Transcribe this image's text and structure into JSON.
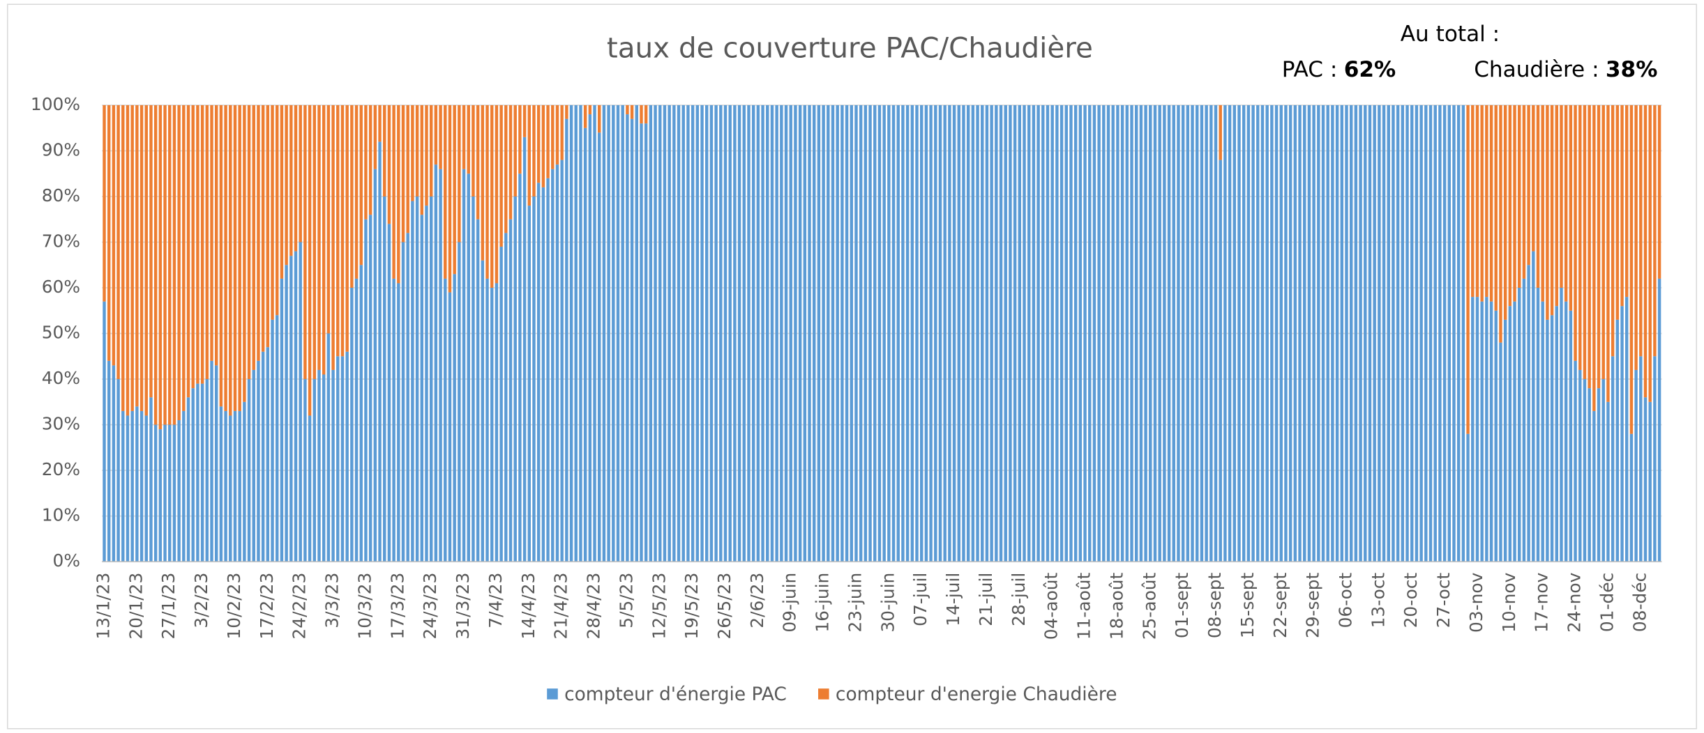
{
  "chart_data": {
    "type": "stacked_bar_percent",
    "title": "taux de couverture PAC/Chaudière",
    "annotation": {
      "title": "Au total :",
      "items": [
        {
          "label": "PAC :",
          "value_label": "62%"
        },
        {
          "label": "Chaudière :",
          "value_label": "38%"
        }
      ]
    },
    "categories": [
      "13/1/23",
      null,
      null,
      null,
      null,
      null,
      null,
      "20/1/23",
      null,
      null,
      null,
      null,
      null,
      null,
      "27/1/23",
      null,
      null,
      null,
      null,
      null,
      null,
      "3/2/23",
      null,
      null,
      null,
      null,
      null,
      null,
      "10/2/23",
      null,
      null,
      null,
      null,
      null,
      null,
      "17/2/23",
      null,
      null,
      null,
      null,
      null,
      null,
      "24/2/23",
      null,
      null,
      null,
      null,
      null,
      null,
      "3/3/23",
      null,
      null,
      null,
      null,
      null,
      null,
      "10/3/23",
      null,
      null,
      null,
      null,
      null,
      null,
      "17/3/23",
      null,
      null,
      null,
      null,
      null,
      null,
      "24/3/23",
      null,
      null,
      null,
      null,
      null,
      null,
      "31/3/23",
      null,
      null,
      null,
      null,
      null,
      null,
      "7/4/23",
      null,
      null,
      null,
      null,
      null,
      null,
      "14/4/23",
      null,
      null,
      null,
      null,
      null,
      null,
      "21/4/23",
      null,
      null,
      null,
      null,
      null,
      null,
      "28/4/23",
      null,
      null,
      null,
      null,
      null,
      null,
      "5/5/23",
      null,
      null,
      null,
      null,
      null,
      null,
      "12/5/23",
      null,
      null,
      null,
      null,
      null,
      null,
      "19/5/23",
      null,
      null,
      null,
      null,
      null,
      null,
      "26/5/23",
      null,
      null,
      null,
      null,
      null,
      null,
      "2/6/23",
      null,
      null,
      null,
      null,
      null,
      null,
      "09-juin",
      null,
      null,
      null,
      null,
      null,
      null,
      "16-juin",
      null,
      null,
      null,
      null,
      null,
      null,
      "23-juin",
      null,
      null,
      null,
      null,
      null,
      null,
      "30-juin",
      null,
      null,
      null,
      null,
      null,
      null,
      "07-juil",
      null,
      null,
      null,
      null,
      null,
      null,
      "14-juil",
      null,
      null,
      null,
      null,
      null,
      null,
      "21-juil",
      null,
      null,
      null,
      null,
      null,
      null,
      "28-juil",
      null,
      null,
      null,
      null,
      null,
      null,
      "04-août",
      null,
      null,
      null,
      null,
      null,
      null,
      "11-août",
      null,
      null,
      null,
      null,
      null,
      null,
      "18-août",
      null,
      null,
      null,
      null,
      null,
      null,
      "25-août",
      null,
      null,
      null,
      null,
      null,
      null,
      "01-sept",
      null,
      null,
      null,
      null,
      null,
      null,
      "08-sept",
      null,
      null,
      null,
      null,
      null,
      null,
      "15-sept",
      null,
      null,
      null,
      null,
      null,
      null,
      "22-sept",
      null,
      null,
      null,
      null,
      null,
      null,
      "29-sept",
      null,
      null,
      null,
      null,
      null,
      null,
      "06-oct",
      null,
      null,
      null,
      null,
      null,
      null,
      "13-oct",
      null,
      null,
      null,
      null,
      null,
      null,
      "20-oct",
      null,
      null,
      null,
      null,
      null,
      null,
      "27-oct",
      null,
      null,
      null,
      null,
      null,
      null,
      "03-nov",
      null,
      null,
      null,
      null,
      null,
      null,
      "10-nov",
      null,
      null,
      null,
      null,
      null,
      null,
      "17-nov",
      null,
      null,
      null,
      null,
      null,
      null,
      "24-nov",
      null,
      null,
      null,
      null,
      null,
      null,
      "01-déc",
      null,
      null,
      null,
      null,
      null,
      null,
      "08-déc",
      null,
      null,
      null,
      null
    ],
    "series": [
      {
        "name": "compteur d'énergie PAC",
        "color": "#5b9bd5",
        "values": [
          57,
          44,
          43,
          40,
          33,
          32,
          33,
          34,
          33,
          32,
          36,
          30,
          29,
          30,
          30,
          30,
          31,
          33,
          36,
          38,
          39,
          39,
          40,
          44,
          43,
          34,
          33,
          32,
          33,
          33,
          35,
          40,
          42,
          44,
          46,
          47,
          53,
          54,
          62,
          65,
          67,
          68,
          70,
          40,
          32,
          40,
          42,
          41,
          50,
          42,
          45,
          45,
          46,
          60,
          62,
          65,
          75,
          76,
          86,
          92,
          80,
          74,
          62,
          61,
          70,
          72,
          79,
          80,
          76,
          78,
          80,
          87,
          86,
          62,
          59,
          63,
          70,
          86,
          85,
          80,
          75,
          66,
          62,
          60,
          61,
          69,
          72,
          75,
          80,
          85,
          93,
          78,
          80,
          83,
          82,
          84,
          86,
          87,
          88,
          97,
          100,
          100,
          100,
          95,
          98,
          100,
          94,
          100,
          100,
          100,
          100,
          100,
          98,
          97,
          100,
          96,
          96,
          100,
          100,
          100,
          100,
          100,
          100,
          100,
          100,
          100,
          100,
          100,
          100,
          100,
          100,
          100,
          100,
          100,
          100,
          100,
          100,
          100,
          100,
          100,
          100,
          100,
          100,
          100,
          100,
          100,
          100,
          100,
          100,
          100,
          100,
          100,
          100,
          100,
          100,
          100,
          100,
          100,
          100,
          100,
          100,
          100,
          100,
          100,
          100,
          100,
          100,
          100,
          100,
          100,
          100,
          100,
          100,
          100,
          100,
          100,
          100,
          100,
          100,
          100,
          100,
          100,
          100,
          100,
          100,
          100,
          100,
          100,
          100,
          100,
          100,
          100,
          100,
          100,
          100,
          100,
          100,
          100,
          100,
          100,
          100,
          100,
          100,
          100,
          100,
          100,
          100,
          100,
          100,
          100,
          100,
          100,
          100,
          100,
          100,
          100,
          100,
          100,
          100,
          100,
          100,
          100,
          100,
          100,
          100,
          100,
          100,
          100,
          100,
          100,
          100,
          100,
          100,
          100,
          100,
          100,
          100,
          100,
          100,
          88,
          100,
          100,
          100,
          100,
          100,
          100,
          100,
          100,
          100,
          100,
          100,
          100,
          100,
          100,
          100,
          100,
          100,
          100,
          100,
          100,
          100,
          100,
          100,
          100,
          100,
          100,
          100,
          100,
          100,
          100,
          100,
          100,
          100,
          100,
          100,
          100,
          100,
          100,
          100,
          100,
          100,
          100,
          100,
          100,
          100,
          100,
          100,
          100,
          100,
          100,
          100,
          100,
          28,
          58,
          58,
          57,
          58,
          57,
          55,
          48,
          53,
          56,
          57,
          60,
          62,
          65,
          68,
          60,
          57,
          53,
          54,
          56,
          60,
          57,
          55,
          44,
          42,
          40,
          38,
          33,
          38,
          40,
          35,
          45,
          53,
          56,
          58,
          28,
          42,
          45,
          36,
          35,
          45,
          62
        ]
      },
      {
        "name": "compteur d'energie Chaudière",
        "color": "#ed7d31",
        "values": [
          43,
          56,
          57,
          60,
          67,
          68,
          67,
          66,
          67,
          68,
          64,
          70,
          71,
          70,
          70,
          70,
          69,
          67,
          64,
          62,
          61,
          61,
          60,
          56,
          57,
          66,
          67,
          68,
          67,
          67,
          65,
          60,
          58,
          56,
          54,
          53,
          47,
          46,
          38,
          35,
          33,
          32,
          30,
          60,
          68,
          60,
          58,
          59,
          50,
          58,
          55,
          55,
          54,
          40,
          38,
          35,
          25,
          24,
          14,
          8,
          20,
          26,
          38,
          39,
          30,
          28,
          21,
          20,
          24,
          22,
          20,
          13,
          14,
          38,
          41,
          37,
          30,
          14,
          15,
          20,
          25,
          34,
          38,
          40,
          39,
          31,
          28,
          25,
          20,
          15,
          7,
          22,
          20,
          17,
          18,
          16,
          14,
          13,
          12,
          3,
          0,
          0,
          0,
          5,
          2,
          0,
          6,
          0,
          0,
          0,
          0,
          0,
          2,
          3,
          0,
          4,
          4,
          0,
          0,
          0,
          0,
          0,
          0,
          0,
          0,
          0,
          0,
          0,
          0,
          0,
          0,
          0,
          0,
          0,
          0,
          0,
          0,
          0,
          0,
          0,
          0,
          0,
          0,
          0,
          0,
          0,
          0,
          0,
          0,
          0,
          0,
          0,
          0,
          0,
          0,
          0,
          0,
          0,
          0,
          0,
          0,
          0,
          0,
          0,
          0,
          0,
          0,
          0,
          0,
          0,
          0,
          0,
          0,
          0,
          0,
          0,
          0,
          0,
          0,
          0,
          0,
          0,
          0,
          0,
          0,
          0,
          0,
          0,
          0,
          0,
          0,
          0,
          0,
          0,
          0,
          0,
          0,
          0,
          0,
          0,
          0,
          0,
          0,
          0,
          0,
          0,
          0,
          0,
          0,
          0,
          0,
          0,
          0,
          0,
          0,
          0,
          0,
          0,
          0,
          0,
          0,
          0,
          0,
          0,
          0,
          0,
          0,
          0,
          0,
          0,
          0,
          0,
          0,
          0,
          0,
          0,
          0,
          0,
          0,
          12,
          0,
          0,
          0,
          0,
          0,
          0,
          0,
          0,
          0,
          0,
          0,
          0,
          0,
          0,
          0,
          0,
          0,
          0,
          0,
          0,
          0,
          0,
          0,
          0,
          0,
          0,
          0,
          0,
          0,
          0,
          0,
          0,
          0,
          0,
          0,
          0,
          0,
          0,
          0,
          0,
          0,
          0,
          0,
          0,
          0,
          0,
          0,
          0,
          0,
          0,
          0,
          0,
          72,
          42,
          42,
          43,
          42,
          43,
          45,
          52,
          47,
          44,
          43,
          40,
          38,
          35,
          32,
          40,
          43,
          47,
          46,
          44,
          40,
          43,
          45,
          56,
          58,
          60,
          62,
          67,
          62,
          60,
          65,
          55,
          47,
          44,
          42,
          72,
          58,
          55,
          64,
          65,
          55,
          38
        ]
      }
    ],
    "ylim": [
      0,
      100
    ],
    "yticks": [
      {
        "value": 0,
        "label": "0%"
      },
      {
        "value": 10,
        "label": "10%"
      },
      {
        "value": 20,
        "label": "20%"
      },
      {
        "value": 30,
        "label": "30%"
      },
      {
        "value": 40,
        "label": "40%"
      },
      {
        "value": 50,
        "label": "50%"
      },
      {
        "value": 60,
        "label": "60%"
      },
      {
        "value": 70,
        "label": "70%"
      },
      {
        "value": 80,
        "label": "80%"
      },
      {
        "value": 90,
        "label": "90%"
      },
      {
        "value": 100,
        "label": "100%"
      }
    ],
    "grid": true,
    "legend": "bottom"
  }
}
